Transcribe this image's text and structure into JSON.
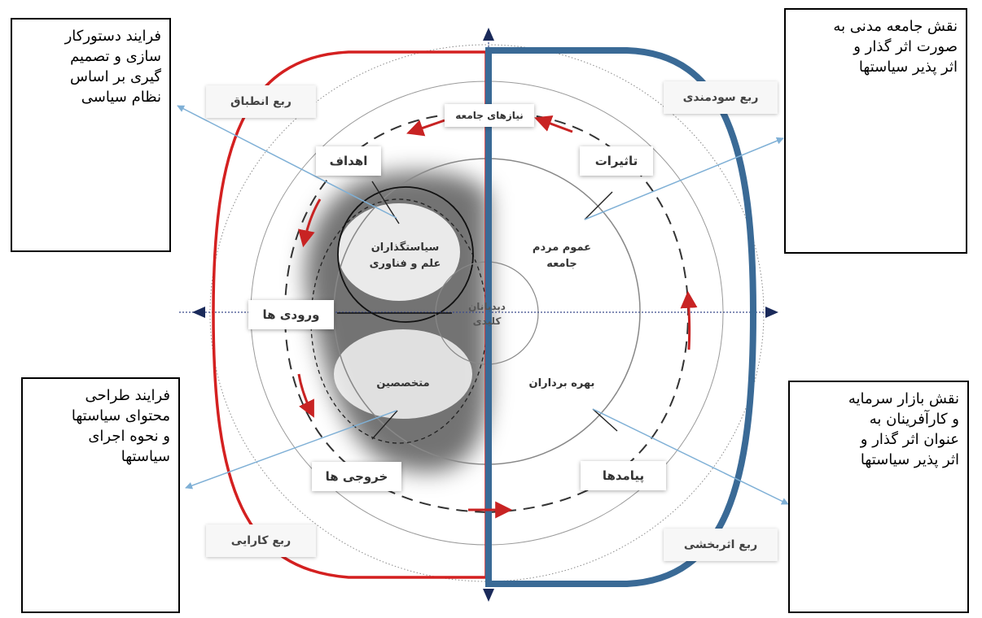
{
  "diagram": {
    "notes": {
      "top_left": [
        "فرایند دستورکار",
        "سازی و تصمیم",
        "گیری بر اساس",
        "نظام سیاسی"
      ],
      "top_right": [
        "نقش جامعه مدنی به",
        "صورت اثر گذار و",
        "اثر پذیر سیاستها"
      ],
      "bottom_left": [
        "فرایند طراحی",
        "محتوای سیاستها",
        "و نحوه اجرای",
        "سیاستها"
      ],
      "bottom_right": [
        "نقش بازار سرمایه",
        "و کارآفرینان به",
        "عنوان اثر گذار و",
        "اثر پذیر سیاستها"
      ]
    },
    "quadrants": {
      "top_left": "ربع انطباق",
      "top_right": "ربع سودمندی",
      "bottom_left": "ربع کارایی",
      "bottom_right": "ربع اثربخشی"
    },
    "stages": {
      "needs": "نیازهای جامعه",
      "goals": "اهداف",
      "impacts": "تاثیرات",
      "inputs": "ورودی ها",
      "outputs": "خروجی ها",
      "outcomes": "پیامدها"
    },
    "actors": {
      "policymakers": [
        "سیاستگذاران",
        "علم و فناوری"
      ],
      "public": [
        "عموم مردم",
        "جامعه"
      ],
      "experts": "متخصصین",
      "beneficiaries": "بهره برداران",
      "center": [
        "دیدبانان",
        "کلیدی"
      ]
    },
    "colors": {
      "red_boundary": "#d42020",
      "blue_boundary": "#3a6a96",
      "leader_line": "#7fb0d6",
      "arrow_red": "#c82323",
      "axis_arrow": "#1a2a5a"
    }
  }
}
